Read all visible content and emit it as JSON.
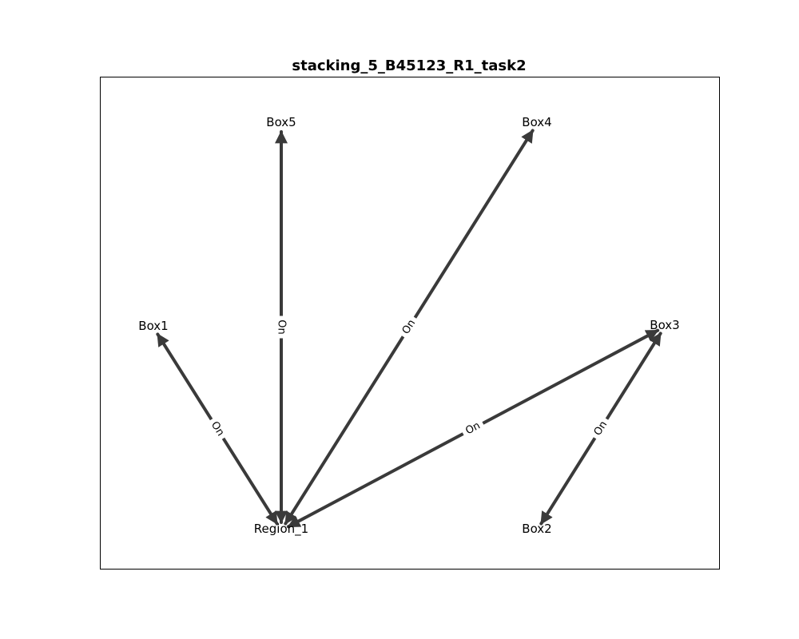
{
  "title": "stacking_5_B45123_R1_task2",
  "colors": {
    "edge": "#3a3a3a",
    "background": "#ffffff",
    "frame": "#000000",
    "text": "#000000"
  },
  "nodes": [
    {
      "id": "box5",
      "label": "Box5"
    },
    {
      "id": "box4",
      "label": "Box4"
    },
    {
      "id": "box1",
      "label": "Box1"
    },
    {
      "id": "box3",
      "label": "Box3"
    },
    {
      "id": "region1",
      "label": "Region_1"
    },
    {
      "id": "box2",
      "label": "Box2"
    }
  ],
  "edges": [
    {
      "from": "box5",
      "to": "region1",
      "label": "On"
    },
    {
      "from": "box4",
      "to": "region1",
      "label": "On"
    },
    {
      "from": "box1",
      "to": "region1",
      "label": "On"
    },
    {
      "from": "box3",
      "to": "region1",
      "label": "On"
    },
    {
      "from": "box2",
      "to": "box3",
      "label": "On"
    }
  ]
}
